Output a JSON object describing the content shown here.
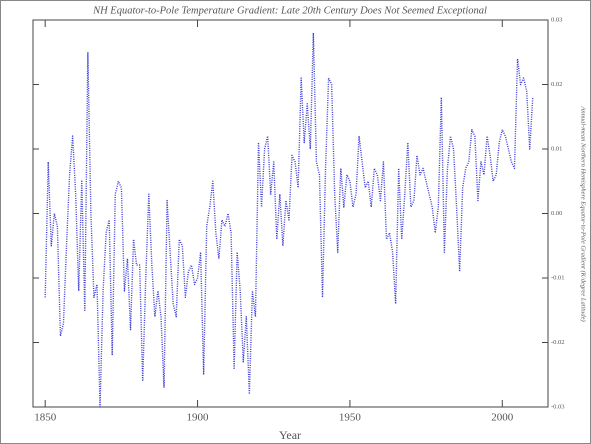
{
  "chart_data": {
    "type": "line",
    "title": "NH Equator-to-Pole Temperature Gradient: Late 20th Century Does Not Seemed Exceptional",
    "xlabel": "Year",
    "ylabel": "Annual-mean Northern Hemisphere Equator-to-Pole Gradient (K/degree Latitude)",
    "color": "#3a3ad8",
    "x": [
      1850,
      1851,
      1852,
      1853,
      1854,
      1855,
      1856,
      1857,
      1858,
      1859,
      1860,
      1861,
      1862,
      1863,
      1864,
      1865,
      1866,
      1867,
      1868,
      1869,
      1870,
      1871,
      1872,
      1873,
      1874,
      1875,
      1876,
      1877,
      1878,
      1879,
      1880,
      1881,
      1882,
      1883,
      1884,
      1885,
      1886,
      1887,
      1888,
      1889,
      1890,
      1891,
      1892,
      1893,
      1894,
      1895,
      1896,
      1897,
      1898,
      1899,
      1900,
      1901,
      1902,
      1903,
      1904,
      1905,
      1906,
      1907,
      1908,
      1909,
      1910,
      1911,
      1912,
      1913,
      1914,
      1915,
      1916,
      1917,
      1918,
      1919,
      1920,
      1921,
      1922,
      1923,
      1924,
      1925,
      1926,
      1927,
      1928,
      1929,
      1930,
      1931,
      1932,
      1933,
      1934,
      1935,
      1936,
      1937,
      1938,
      1939,
      1940,
      1941,
      1942,
      1943,
      1944,
      1945,
      1946,
      1947,
      1948,
      1949,
      1950,
      1951,
      1952,
      1953,
      1954,
      1955,
      1956,
      1957,
      1958,
      1959,
      1960,
      1961,
      1962,
      1963,
      1964,
      1965,
      1966,
      1967,
      1968,
      1969,
      1970,
      1971,
      1972,
      1973,
      1974,
      1975,
      1976,
      1977,
      1978,
      1979,
      1980,
      1981,
      1982,
      1983,
      1984,
      1985,
      1986,
      1987,
      1988,
      1989,
      1990,
      1991,
      1992,
      1993,
      1994,
      1995,
      1996,
      1997,
      1998,
      1999,
      2000,
      2001,
      2002,
      2003,
      2004,
      2005,
      2006,
      2007,
      2008,
      2009,
      2010
    ],
    "values": [
      -0.013,
      0.008,
      -0.005,
      0.0,
      -0.002,
      -0.019,
      -0.017,
      -0.005,
      0.006,
      0.012,
      0.003,
      -0.012,
      0.005,
      -0.015,
      0.025,
      0.0,
      -0.013,
      -0.011,
      -0.03,
      -0.012,
      -0.003,
      -0.001,
      -0.022,
      0.003,
      0.005,
      0.004,
      -0.012,
      -0.007,
      -0.018,
      -0.004,
      -0.008,
      -0.008,
      -0.026,
      -0.01,
      0.003,
      -0.008,
      -0.016,
      -0.012,
      -0.016,
      -0.027,
      0.002,
      -0.006,
      -0.014,
      -0.016,
      -0.004,
      -0.005,
      -0.013,
      -0.009,
      -0.008,
      -0.011,
      -0.01,
      -0.006,
      -0.025,
      -0.002,
      0.001,
      0.005,
      -0.003,
      -0.007,
      -0.001,
      -0.002,
      0.0,
      -0.003,
      -0.024,
      -0.006,
      -0.012,
      -0.023,
      -0.016,
      -0.028,
      -0.012,
      -0.016,
      0.011,
      0.001,
      0.01,
      0.012,
      0.003,
      0.008,
      -0.004,
      0.003,
      -0.005,
      0.002,
      -0.001,
      0.009,
      0.008,
      0.004,
      0.021,
      0.011,
      0.017,
      0.01,
      0.028,
      0.008,
      0.006,
      -0.013,
      0.007,
      0.021,
      0.02,
      0.003,
      -0.006,
      0.007,
      0.001,
      0.006,
      0.005,
      0.001,
      0.003,
      0.012,
      0.008,
      0.004,
      0.005,
      0.001,
      0.007,
      0.006,
      0.002,
      0.008,
      -0.004,
      -0.003,
      -0.006,
      -0.014,
      0.007,
      -0.004,
      0.003,
      0.011,
      0.001,
      0.002,
      0.009,
      0.006,
      0.007,
      0.005,
      0.003,
      0.001,
      -0.003,
      0.001,
      0.018,
      -0.006,
      0.007,
      0.012,
      0.01,
      0.001,
      -0.009,
      0.004,
      0.007,
      0.008,
      0.013,
      0.012,
      0.002,
      0.008,
      0.006,
      0.012,
      0.009,
      0.005,
      0.006,
      0.011,
      0.013,
      0.012,
      0.01,
      0.008,
      0.007,
      0.024,
      0.02,
      0.021,
      0.019,
      0.01,
      0.018
    ],
    "xlim": [
      1846,
      2015
    ],
    "xticks": [
      1850,
      1900,
      1950,
      2000
    ],
    "ylim": [
      -0.03,
      0.03
    ],
    "yticks": [
      -0.03,
      -0.02,
      -0.01,
      {
        "value": 0,
        "label": "0.00"
      },
      0.01,
      0.02,
      0.03
    ],
    "grid": false
  }
}
